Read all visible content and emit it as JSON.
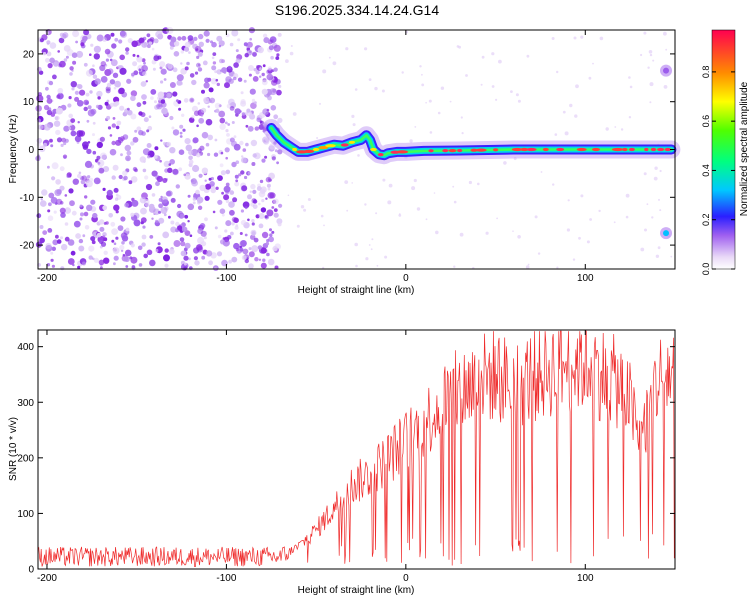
{
  "title": "S196.2025.334.14.24.G14",
  "colors": {
    "snr_line": "#ef2b2b",
    "track": "#ff2a5a",
    "noise": "#8a2be2"
  },
  "chart_data": [
    {
      "type": "heatmap",
      "xlabel": "Height of straight line (km)",
      "ylabel": "Frequency (Hz)",
      "xlim": [
        -205,
        150
      ],
      "ylim": [
        -25,
        25
      ],
      "xticks": [
        -200,
        -100,
        0,
        100
      ],
      "yticks": [
        -20,
        -10,
        0,
        10,
        20
      ],
      "colorbar": {
        "label": "Normalized spectral amplitude",
        "range": [
          0,
          0.97
        ],
        "ticks": [
          0.0,
          0.2,
          0.4,
          0.6,
          0.8
        ]
      },
      "track": {
        "x": [
          -75,
          -72,
          -68,
          -64,
          -60,
          -55,
          -50,
          -45,
          -40,
          -35,
          -30,
          -25,
          -22,
          -20,
          -18,
          -15,
          -12,
          -10,
          -5,
          0,
          10,
          30,
          60,
          100,
          130,
          148
        ],
        "y": [
          4.5,
          3,
          1.5,
          0.5,
          -0.5,
          -0.5,
          0,
          0.5,
          1,
          0.8,
          1.5,
          2,
          3,
          2,
          0,
          -1,
          -1.2,
          -0.8,
          -0.5,
          -0.5,
          -0.3,
          -0.2,
          0,
          0,
          0,
          0
        ]
      },
      "isolated_points": [
        {
          "x": 145,
          "y": 16.5
        },
        {
          "x": 145,
          "y": -17.5
        }
      ]
    },
    {
      "type": "line",
      "xlabel": "Height of straight line (km)",
      "ylabel": "SNR (10 * v/v)",
      "xlim": [
        -205,
        150
      ],
      "ylim": [
        0,
        430
      ],
      "xticks": [
        -200,
        -100,
        0,
        100
      ],
      "yticks": [
        0,
        100,
        200,
        300,
        400
      ],
      "envelope": {
        "x": [
          -205,
          -70,
          -60,
          -50,
          -40,
          -30,
          -20,
          -10,
          0,
          10,
          20,
          30,
          40,
          50,
          60,
          70,
          80,
          90,
          100,
          110,
          120,
          125,
          130,
          135,
          140,
          150
        ],
        "y": [
          22,
          22,
          40,
          70,
          110,
          150,
          170,
          200,
          230,
          260,
          300,
          320,
          340,
          350,
          330,
          345,
          360,
          370,
          375,
          350,
          330,
          300,
          230,
          280,
          340,
          360
        ]
      }
    }
  ]
}
